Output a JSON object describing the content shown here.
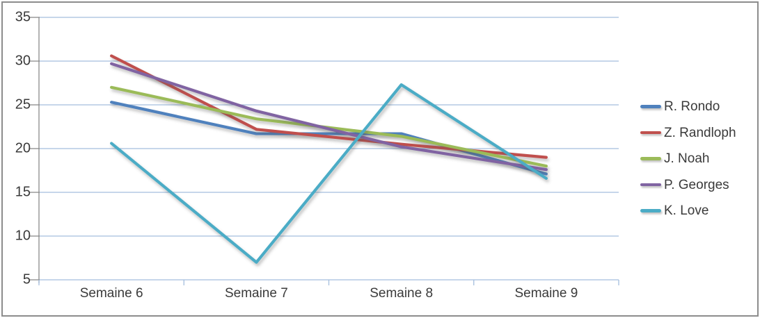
{
  "chart_data": {
    "type": "line",
    "title": "",
    "xlabel": "",
    "ylabel": "",
    "categories": [
      "Semaine 6",
      "Semaine 7",
      "Semaine 8",
      "Semaine 9"
    ],
    "series": [
      {
        "name": "R. Rondo",
        "color": "#4F81BD",
        "values": [
          25.3,
          21.7,
          21.7,
          17.1
        ]
      },
      {
        "name": "Z. Randloph",
        "color": "#C0504D",
        "values": [
          30.6,
          22.2,
          20.5,
          19.0
        ]
      },
      {
        "name": "J. Noah",
        "color": "#9BBB59",
        "values": [
          27.0,
          23.4,
          21.4,
          18.0
        ]
      },
      {
        "name": "P. Georges",
        "color": "#8064A2",
        "values": [
          29.7,
          24.3,
          20.2,
          17.6
        ]
      },
      {
        "name": "K. Love",
        "color": "#4BACC6",
        "values": [
          20.6,
          7.0,
          27.3,
          16.6
        ]
      }
    ],
    "yticks": [
      35,
      30,
      25,
      20,
      15,
      10,
      5
    ],
    "ylim": [
      5,
      35
    ],
    "grid": true,
    "legend_position": "right",
    "colors": {
      "gridline": "#A4BEDE",
      "axis_line": "#8A8A8A",
      "text": "#3A3A3A",
      "background": "#FFFFFF",
      "border": "#8C8C8C"
    }
  }
}
